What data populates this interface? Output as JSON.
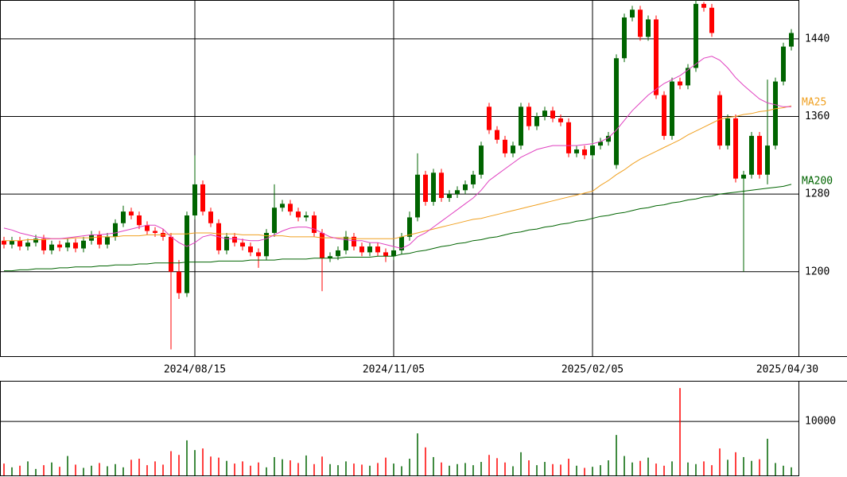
{
  "chart_data": {
    "type": "candlestick",
    "categories": [
      null,
      null,
      null,
      null,
      null,
      null,
      null,
      null,
      null,
      null,
      null,
      null,
      null,
      null,
      null,
      null,
      null,
      null,
      null,
      null,
      null,
      null,
      null,
      null,
      "2024/08/15",
      null,
      null,
      null,
      null,
      null,
      null,
      null,
      null,
      null,
      null,
      null,
      null,
      null,
      null,
      null,
      null,
      null,
      null,
      null,
      null,
      null,
      null,
      null,
      null,
      "2024/11/05",
      null,
      null,
      null,
      null,
      null,
      null,
      null,
      null,
      null,
      null,
      null,
      null,
      null,
      null,
      null,
      null,
      null,
      null,
      null,
      null,
      null,
      null,
      null,
      null,
      "2025/02/05",
      null,
      null,
      null,
      null,
      null,
      null,
      null,
      null,
      null,
      null,
      null,
      null,
      null,
      null,
      null,
      null,
      null,
      null,
      null,
      null,
      null,
      null,
      null,
      null,
      "2025/04/30"
    ],
    "open": [
      1232,
      1228,
      1232,
      1226,
      1230,
      1234,
      1222,
      1228,
      1225,
      1230,
      1224,
      1232,
      1238,
      1228,
      1236,
      1250,
      1262,
      1258,
      1248,
      1242,
      1240,
      1236,
      1200,
      1178,
      1258,
      1290,
      1262,
      1250,
      1222,
      1236,
      1230,
      1226,
      1220,
      1216,
      1240,
      1266,
      1270,
      1262,
      1256,
      1258,
      1240,
      1214,
      1216,
      1222,
      1236,
      1226,
      1220,
      1226,
      1220,
      1216,
      1222,
      1236,
      1256,
      1300,
      1272,
      1302,
      1276,
      1280,
      1284,
      1290,
      1300,
      1370,
      1346,
      1336,
      1322,
      1330,
      1370,
      1350,
      1360,
      1366,
      1358,
      1354,
      1322,
      1326,
      1320,
      1330,
      1334,
      1310,
      1420,
      1462,
      1470,
      1442,
      1460,
      1382,
      1340,
      1396,
      1392,
      1410,
      1476,
      1472,
      1382,
      1330,
      1358,
      1296,
      1300,
      1340,
      1300,
      1330,
      1396,
      1432
    ],
    "high": [
      1236,
      1236,
      1236,
      1234,
      1238,
      1238,
      1232,
      1232,
      1234,
      1234,
      1236,
      1242,
      1242,
      1240,
      1254,
      1268,
      1266,
      1262,
      1252,
      1246,
      1244,
      1240,
      1212,
      1262,
      1320,
      1294,
      1266,
      1254,
      1240,
      1240,
      1234,
      1230,
      1224,
      1244,
      1290,
      1274,
      1274,
      1266,
      1262,
      1262,
      1244,
      1220,
      1226,
      1242,
      1240,
      1230,
      1230,
      1230,
      1224,
      1226,
      1240,
      1262,
      1322,
      1304,
      1306,
      1306,
      1284,
      1288,
      1294,
      1304,
      1334,
      1374,
      1350,
      1340,
      1334,
      1374,
      1374,
      1364,
      1370,
      1370,
      1362,
      1358,
      1330,
      1330,
      1334,
      1338,
      1344,
      1424,
      1466,
      1474,
      1474,
      1464,
      1464,
      1386,
      1400,
      1400,
      1414,
      1480,
      1478,
      1476,
      1386,
      1362,
      1362,
      1304,
      1344,
      1344,
      1398,
      1400,
      1436,
      1450
    ],
    "low": [
      1224,
      1224,
      1222,
      1222,
      1226,
      1218,
      1218,
      1221,
      1221,
      1220,
      1220,
      1228,
      1224,
      1224,
      1232,
      1246,
      1254,
      1244,
      1238,
      1236,
      1232,
      1120,
      1172,
      1174,
      1254,
      1258,
      1246,
      1218,
      1218,
      1226,
      1222,
      1216,
      1204,
      1212,
      1236,
      1262,
      1258,
      1252,
      1252,
      1236,
      1180,
      1210,
      1212,
      1218,
      1222,
      1216,
      1216,
      1216,
      1210,
      1212,
      1218,
      1232,
      1252,
      1268,
      1268,
      1272,
      1272,
      1276,
      1280,
      1286,
      1296,
      1342,
      1332,
      1318,
      1318,
      1326,
      1346,
      1346,
      1356,
      1354,
      1350,
      1318,
      1318,
      1316,
      1316,
      1326,
      1330,
      1306,
      1416,
      1458,
      1438,
      1438,
      1378,
      1336,
      1336,
      1388,
      1388,
      1406,
      1468,
      1442,
      1326,
      1326,
      1292,
      1200,
      1296,
      1296,
      1290,
      1326,
      1392,
      1428
    ],
    "close": [
      1228,
      1232,
      1226,
      1230,
      1234,
      1222,
      1228,
      1225,
      1230,
      1224,
      1232,
      1238,
      1228,
      1236,
      1250,
      1262,
      1258,
      1248,
      1242,
      1240,
      1236,
      1200,
      1178,
      1258,
      1290,
      1262,
      1250,
      1222,
      1236,
      1230,
      1226,
      1220,
      1216,
      1240,
      1266,
      1270,
      1262,
      1256,
      1258,
      1240,
      1214,
      1216,
      1222,
      1236,
      1226,
      1220,
      1226,
      1220,
      1216,
      1222,
      1236,
      1256,
      1300,
      1272,
      1302,
      1276,
      1280,
      1284,
      1290,
      1300,
      1330,
      1346,
      1336,
      1322,
      1330,
      1370,
      1350,
      1360,
      1366,
      1358,
      1354,
      1322,
      1326,
      1320,
      1330,
      1334,
      1340,
      1420,
      1462,
      1470,
      1442,
      1460,
      1382,
      1340,
      1396,
      1392,
      1410,
      1476,
      1472,
      1446,
      1330,
      1358,
      1296,
      1300,
      1340,
      1300,
      1330,
      1396,
      1432,
      1446
    ],
    "up_color": "#006400",
    "down_color": "#ff0000",
    "ylim": [
      1113,
      1480
    ],
    "yticks": [
      1200,
      1280,
      1360,
      1440
    ],
    "series": [
      {
        "name": "MA25",
        "color": "#f0a020",
        "values": [
          1232,
          1232,
          1232,
          1233,
          1233,
          1233,
          1234,
          1234,
          1234,
          1235,
          1235,
          1235,
          1236,
          1236,
          1236,
          1237,
          1237,
          1237,
          1238,
          1238,
          1238,
          1239,
          1239,
          1239,
          1240,
          1240,
          1240,
          1239,
          1239,
          1239,
          1238,
          1238,
          1238,
          1237,
          1237,
          1237,
          1236,
          1236,
          1236,
          1236,
          1235,
          1235,
          1235,
          1235,
          1234,
          1234,
          1234,
          1234,
          1234,
          1234,
          1236,
          1238,
          1240,
          1242,
          1244,
          1246,
          1248,
          1250,
          1252,
          1254,
          1255,
          1257,
          1259,
          1261,
          1263,
          1265,
          1267,
          1269,
          1271,
          1273,
          1275,
          1277,
          1279,
          1281,
          1283,
          1289,
          1294,
          1300,
          1305,
          1311,
          1316,
          1320,
          1324,
          1328,
          1332,
          1336,
          1341,
          1345,
          1349,
          1353,
          1357,
          1359,
          1360,
          1362,
          1363,
          1365,
          1366,
          1368,
          1369,
          1371
        ]
      },
      {
        "color": "#e040c0",
        "values": [
          1245,
          1243,
          1240,
          1238,
          1236,
          1235,
          1234,
          1234,
          1235,
          1236,
          1237,
          1238,
          1238,
          1239,
          1240,
          1242,
          1244,
          1246,
          1248,
          1248,
          1244,
          1236,
          1230,
          1226,
          1230,
          1236,
          1238,
          1236,
          1234,
          1234,
          1233,
          1232,
          1232,
          1234,
          1238,
          1242,
          1245,
          1246,
          1246,
          1244,
          1240,
          1236,
          1234,
          1233,
          1232,
          1232,
          1230,
          1230,
          1228,
          1226,
          1224,
          1228,
          1236,
          1240,
          1246,
          1252,
          1258,
          1264,
          1270,
          1276,
          1284,
          1294,
          1300,
          1306,
          1312,
          1318,
          1322,
          1326,
          1328,
          1330,
          1330,
          1330,
          1330,
          1331,
          1332,
          1334,
          1338,
          1346,
          1356,
          1366,
          1374,
          1382,
          1388,
          1394,
          1398,
          1402,
          1408,
          1414,
          1420,
          1422,
          1418,
          1410,
          1400,
          1392,
          1385,
          1378,
          1374,
          1372,
          1370,
          1370
        ]
      },
      {
        "name": "MA200",
        "color": "#006400",
        "values": [
          1201,
          1201,
          1202,
          1202,
          1203,
          1203,
          1203,
          1204,
          1204,
          1205,
          1205,
          1205,
          1206,
          1206,
          1207,
          1207,
          1207,
          1208,
          1208,
          1209,
          1209,
          1209,
          1209,
          1210,
          1210,
          1210,
          1210,
          1211,
          1211,
          1211,
          1211,
          1212,
          1212,
          1212,
          1212,
          1213,
          1213,
          1213,
          1213,
          1214,
          1214,
          1214,
          1214,
          1215,
          1215,
          1215,
          1215,
          1216,
          1216,
          1216,
          1218,
          1219,
          1221,
          1222,
          1224,
          1226,
          1227,
          1229,
          1230,
          1232,
          1233,
          1235,
          1236,
          1238,
          1240,
          1241,
          1243,
          1244,
          1246,
          1247,
          1249,
          1250,
          1252,
          1253,
          1255,
          1257,
          1258,
          1260,
          1261,
          1263,
          1265,
          1266,
          1268,
          1269,
          1271,
          1272,
          1274,
          1275,
          1277,
          1278,
          1280,
          1281,
          1282,
          1283,
          1284,
          1285,
          1286,
          1287,
          1288,
          1290
        ]
      }
    ],
    "volume": {
      "ylim": [
        0,
        17400
      ],
      "yticks": [
        10000
      ],
      "values": [
        2200,
        1500,
        1800,
        2600,
        1200,
        1900,
        2400,
        1600,
        3600,
        2000,
        1400,
        1800,
        2300,
        1700,
        2100,
        1500,
        2900,
        3100,
        1900,
        2600,
        2000,
        4500,
        3800,
        6500,
        4700,
        5000,
        3500,
        3300,
        2700,
        2200,
        2600,
        1800,
        2400,
        1500,
        3400,
        3000,
        2800,
        2300,
        3700,
        2100,
        3500,
        2100,
        1900,
        2600,
        2200,
        2000,
        1800,
        2300,
        3300,
        2200,
        1700,
        3100,
        7800,
        5200,
        3400,
        2400,
        1800,
        2100,
        2300,
        1900,
        2500,
        3800,
        3200,
        2400,
        1700,
        4300,
        2800,
        1900,
        2500,
        2100,
        2000,
        3100,
        1800,
        1400,
        1600,
        1900,
        2800,
        7500,
        3600,
        2400,
        2700,
        3300,
        2200,
        1800,
        2600,
        16200,
        2400,
        2100,
        2600,
        1900,
        5000,
        2900,
        4300,
        3400,
        2700,
        3000,
        6800,
        2300,
        1800,
        1500
      ]
    }
  }
}
